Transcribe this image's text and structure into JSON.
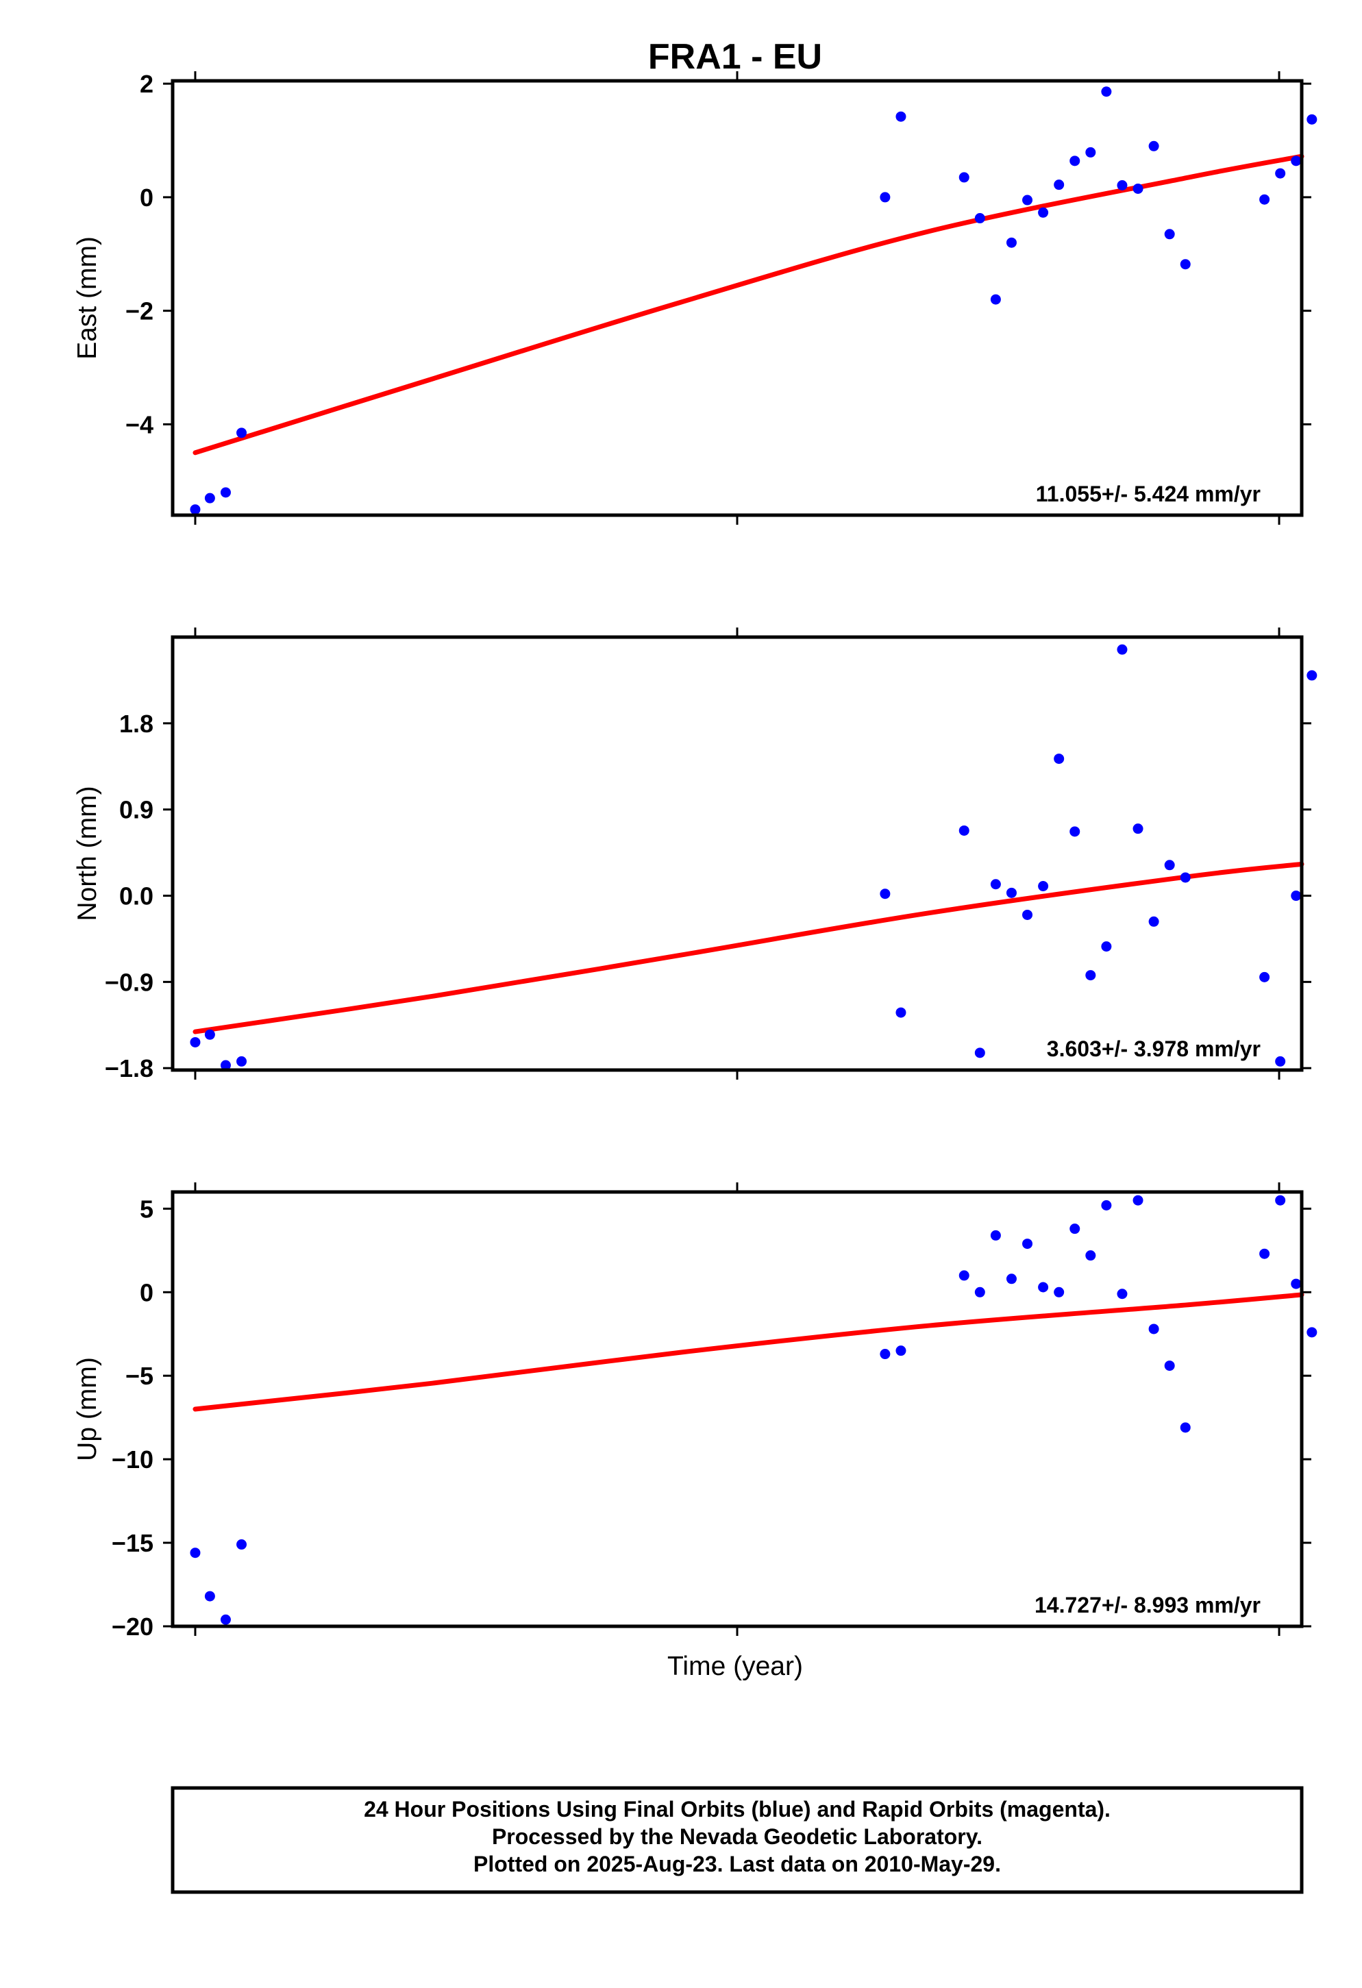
{
  "chart_data": {
    "type": "scatter",
    "title": "FRA1 - EU",
    "xlabel": "Time (year)",
    "colors": {
      "points": "#0000ff",
      "fit": "#ff0000",
      "frame": "#000000"
    },
    "grid": false,
    "panels": [
      {
        "id": "east",
        "ylabel": "East (mm)",
        "ylim": [
          -5.6,
          2.05
        ],
        "yticks": [
          "2",
          "0",
          "−2",
          "−4"
        ],
        "ytick_values": [
          2,
          0,
          -2,
          -4
        ],
        "rate": "11.055+/- 5.424 mm/yr",
        "x": [
          0.02,
          0.033,
          0.047,
          0.061,
          0.631,
          0.645,
          0.701,
          0.715,
          0.729,
          0.743,
          0.757,
          0.771,
          0.785,
          0.799,
          0.813,
          0.827,
          0.841,
          0.855,
          0.869,
          0.883,
          0.897,
          0.967,
          0.981,
          0.995,
          1.009
        ],
        "y": [
          -5.5,
          -5.3,
          -5.2,
          -4.15,
          0.0,
          1.42,
          0.35,
          -0.37,
          -1.8,
          -0.8,
          -0.05,
          -0.27,
          0.22,
          0.64,
          0.79,
          1.86,
          0.21,
          0.15,
          0.9,
          -0.65,
          -1.18,
          -0.04,
          0.42,
          0.64,
          1.37
        ],
        "fit": {
          "x": [
            0.02,
            0.23,
            0.45,
            0.67,
            0.9,
            1.0
          ],
          "y": [
            -4.5,
            -3.2,
            -1.85,
            -0.6,
            0.35,
            0.72
          ]
        }
      },
      {
        "id": "north",
        "ylabel": "North (mm)",
        "ylim": [
          -1.82,
          2.7
        ],
        "yticks": [
          "1.8",
          "0.9",
          "0.0",
          "−0.9",
          "−1.8"
        ],
        "ytick_values": [
          1.8,
          0.9,
          0.0,
          -0.9,
          -1.8
        ],
        "rate": "3.603+/- 3.978 mm/yr",
        "x": [
          0.02,
          0.033,
          0.047,
          0.061,
          0.631,
          0.645,
          0.701,
          0.715,
          0.729,
          0.743,
          0.757,
          0.771,
          0.785,
          0.799,
          0.813,
          0.827,
          0.841,
          0.855,
          0.869,
          0.883,
          0.897,
          0.967,
          0.981,
          0.995,
          1.009
        ],
        "y": [
          -1.53,
          -1.45,
          -1.77,
          -1.73,
          0.02,
          -1.22,
          0.68,
          -1.64,
          0.12,
          0.03,
          -0.2,
          0.1,
          1.43,
          0.67,
          -0.83,
          -0.53,
          2.57,
          0.7,
          -0.27,
          0.32,
          0.19,
          -0.85,
          -1.73,
          0.0,
          2.3
        ],
        "fit": {
          "x": [
            0.02,
            0.23,
            0.45,
            0.67,
            0.9,
            1.0
          ],
          "y": [
            -1.42,
            -1.05,
            -0.62,
            -0.18,
            0.2,
            0.33
          ]
        }
      },
      {
        "id": "up",
        "ylabel": "Up (mm)",
        "ylim": [
          -20.0,
          6.0
        ],
        "yticks": [
          "5",
          "0",
          "−5",
          "−10",
          "−15",
          "−20"
        ],
        "ytick_values": [
          5,
          0,
          -5,
          -10,
          -15,
          -20
        ],
        "rate": "14.727+/- 8.993 mm/yr",
        "x": [
          0.02,
          0.033,
          0.047,
          0.061,
          0.631,
          0.645,
          0.701,
          0.715,
          0.729,
          0.743,
          0.757,
          0.771,
          0.785,
          0.799,
          0.813,
          0.827,
          0.841,
          0.855,
          0.869,
          0.883,
          0.897,
          0.967,
          0.981,
          0.995,
          1.009
        ],
        "y": [
          -15.6,
          -18.2,
          -19.6,
          -15.1,
          -3.7,
          -3.5,
          1.0,
          0.0,
          3.4,
          0.8,
          2.9,
          0.3,
          0.0,
          3.8,
          2.2,
          5.2,
          -0.1,
          5.5,
          -2.2,
          -4.4,
          -8.1,
          2.3,
          5.5,
          0.5,
          -2.4
        ],
        "fit": {
          "x": [
            0.02,
            0.23,
            0.45,
            0.67,
            0.9,
            1.0
          ],
          "y": [
            -7.0,
            -5.45,
            -3.6,
            -2.0,
            -0.75,
            -0.15
          ]
        }
      }
    ],
    "caption": [
      "24 Hour Positions Using Final Orbits (blue) and Rapid Orbits (magenta).",
      "Processed by the Nevada Geodetic Laboratory.",
      "Plotted on 2025-Aug-23. Last data on 2010-May-29."
    ]
  }
}
